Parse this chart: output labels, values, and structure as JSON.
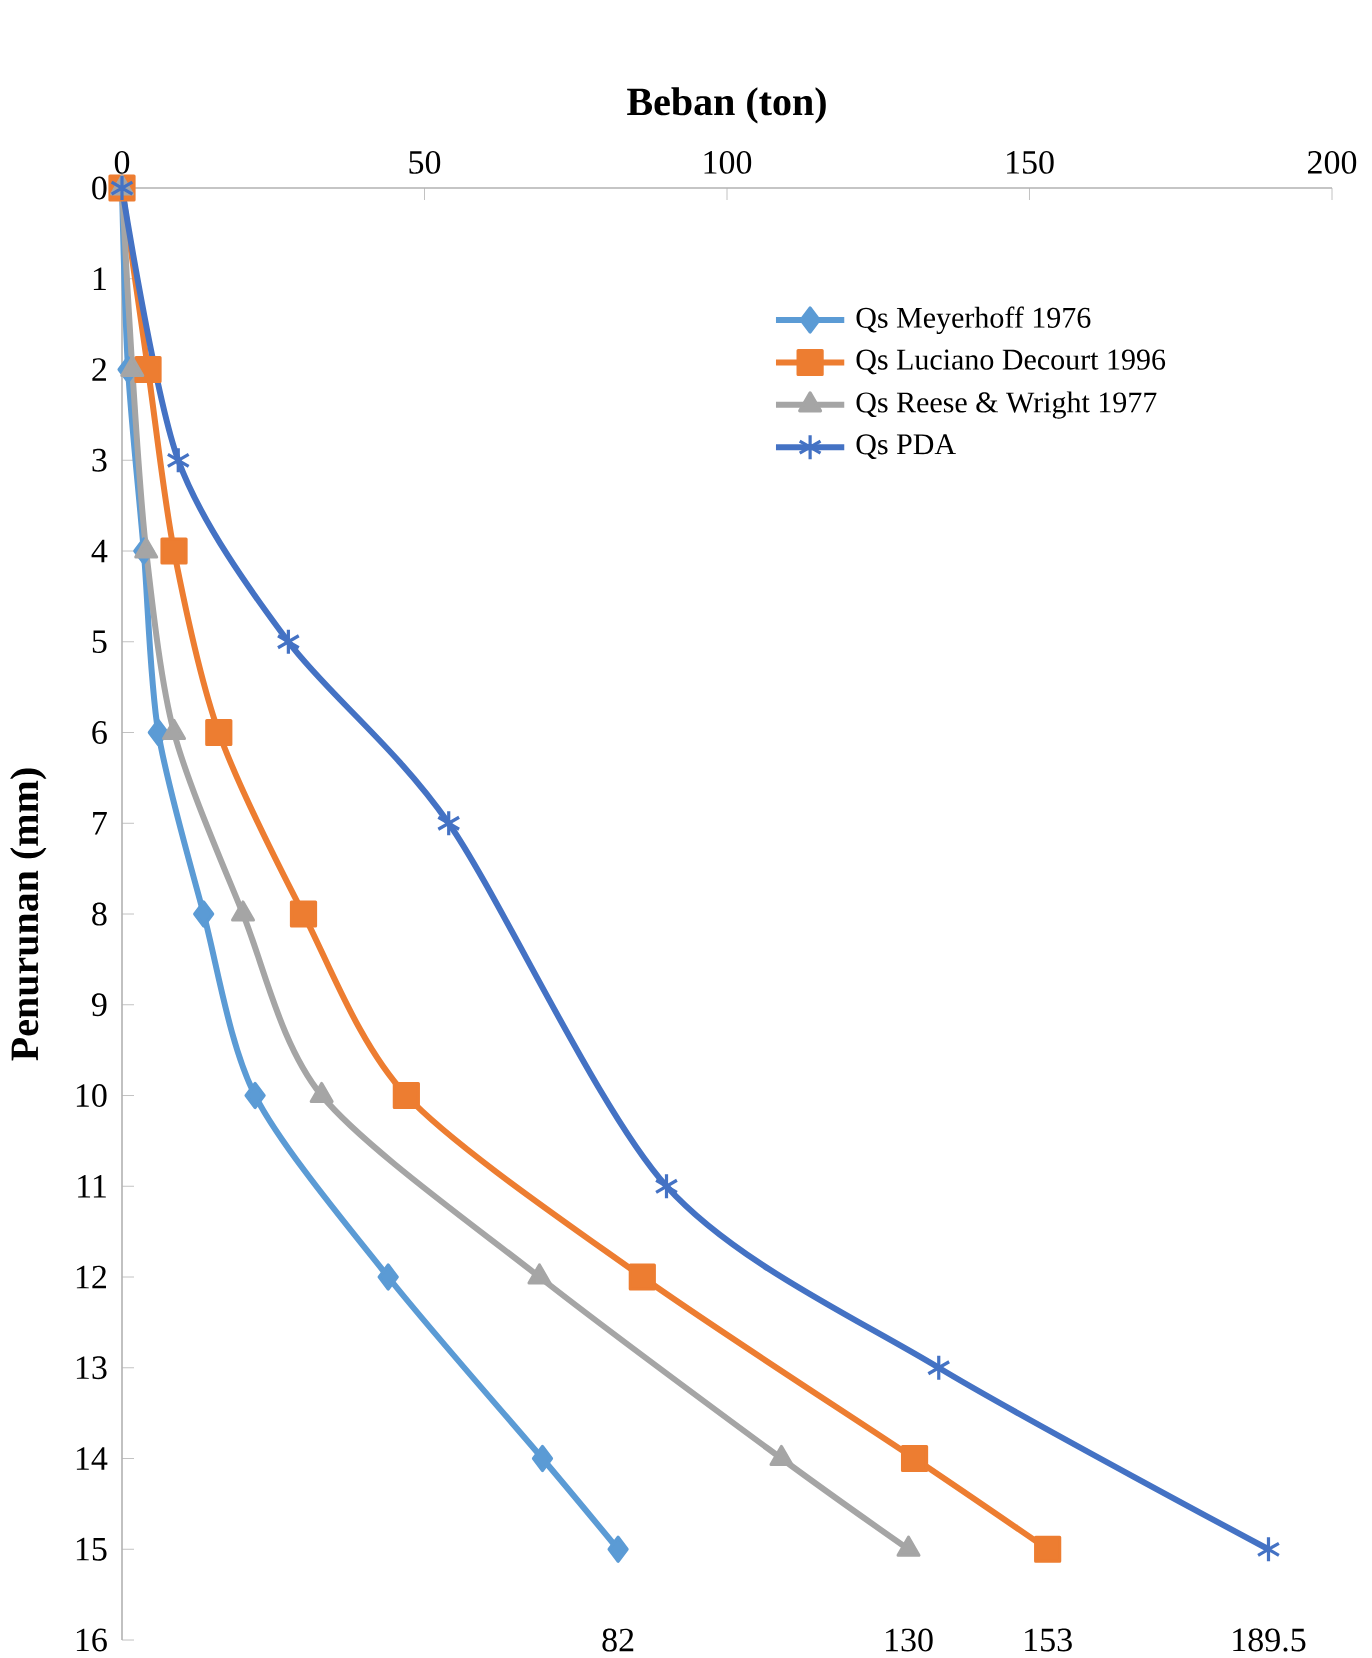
{
  "chart_data": {
    "type": "line",
    "xlabel": "Beban (ton)",
    "ylabel": "Penurunan (mm)",
    "xlim": [
      0,
      200
    ],
    "xticks": [
      0,
      50,
      100,
      150,
      200
    ],
    "ylim": [
      16,
      0
    ],
    "yticks": [
      0,
      1,
      2,
      3,
      4,
      5,
      6,
      7,
      8,
      9,
      10,
      11,
      12,
      13,
      14,
      15,
      16
    ],
    "grid": false,
    "legend": "top right",
    "series": [
      {
        "name": "Qs Meyerhoff 1976",
        "color": "#5b9bd5",
        "marker": "diamond",
        "x": [
          0,
          1,
          3.6,
          6,
          13.5,
          22,
          44,
          69.5,
          82
        ],
        "values": [
          0,
          2,
          4,
          6,
          8,
          10,
          12,
          14,
          15
        ]
      },
      {
        "name": "Qs Luciano Decourt 1996",
        "color": "#ed7d31",
        "marker": "square",
        "x": [
          0,
          4.3,
          8.6,
          16,
          30,
          47,
          86,
          131,
          153
        ],
        "values": [
          0,
          2,
          4,
          6,
          8,
          10,
          12,
          14,
          15
        ]
      },
      {
        "name": "Qs Reese & Wright 1977",
        "color": "#a5a5a5",
        "marker": "triangle",
        "x": [
          0,
          1.7,
          4,
          8.6,
          20,
          33,
          69,
          109,
          130
        ],
        "values": [
          0,
          2,
          4,
          6,
          8,
          10,
          12,
          14,
          15
        ]
      },
      {
        "name": "Qs PDA",
        "color": "#4472c4",
        "marker": "cross",
        "x": [
          0,
          9.3,
          27.5,
          54,
          90,
          135,
          189.5
        ],
        "values": [
          0,
          3,
          5,
          7,
          11,
          13,
          15
        ]
      }
    ],
    "annotations": [
      "82",
      "130",
      "153",
      "189.5"
    ]
  }
}
